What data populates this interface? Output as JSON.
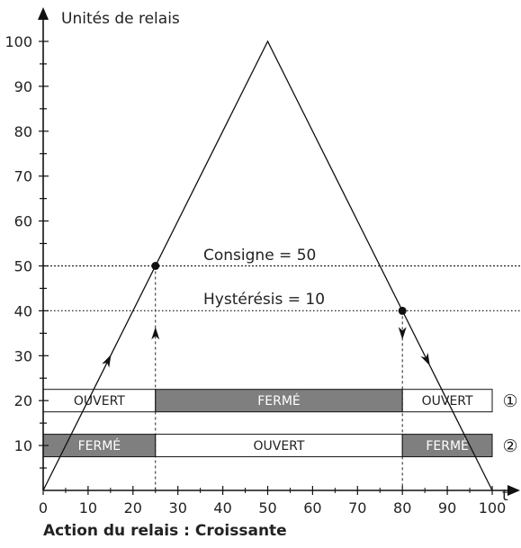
{
  "chart_data": {
    "type": "line",
    "y_axis_title": "Unités de relais",
    "x_axis_title": "t",
    "xlim": [
      0,
      100
    ],
    "ylim": [
      0,
      100
    ],
    "x_ticks": [
      0,
      10,
      20,
      30,
      40,
      50,
      60,
      70,
      80,
      90,
      100
    ],
    "y_ticks": [
      10,
      20,
      30,
      40,
      50,
      60,
      70,
      80,
      90,
      100
    ],
    "series": [
      {
        "x": [
          0,
          50,
          100
        ],
        "y": [
          0,
          100,
          0
        ]
      }
    ],
    "setpoint": {
      "label": "Consigne = 50",
      "value": 50
    },
    "hysteresis": {
      "label": "Hystérésis = 10",
      "value": 40
    },
    "switch_points": [
      {
        "x": 25,
        "y": 50
      },
      {
        "x": 80,
        "y": 40
      }
    ],
    "relay_states": [
      {
        "marker": "①",
        "level": 20,
        "segments": [
          {
            "from": 0,
            "to": 25,
            "state": "OUVERT"
          },
          {
            "from": 25,
            "to": 80,
            "state": "FERMÉ"
          },
          {
            "from": 80,
            "to": 100,
            "state": "OUVERT"
          }
        ]
      },
      {
        "marker": "②",
        "level": 10,
        "segments": [
          {
            "from": 0,
            "to": 25,
            "state": "FERMÉ"
          },
          {
            "from": 25,
            "to": 80,
            "state": "OUVERT"
          },
          {
            "from": 80,
            "to": 100,
            "state": "FERMÉ"
          }
        ]
      }
    ],
    "caption": "Action du relais : Croissante"
  },
  "colors": {
    "closed_fill": "#7f7f7f",
    "open_fill": "#ffffff",
    "line": "#111111"
  }
}
